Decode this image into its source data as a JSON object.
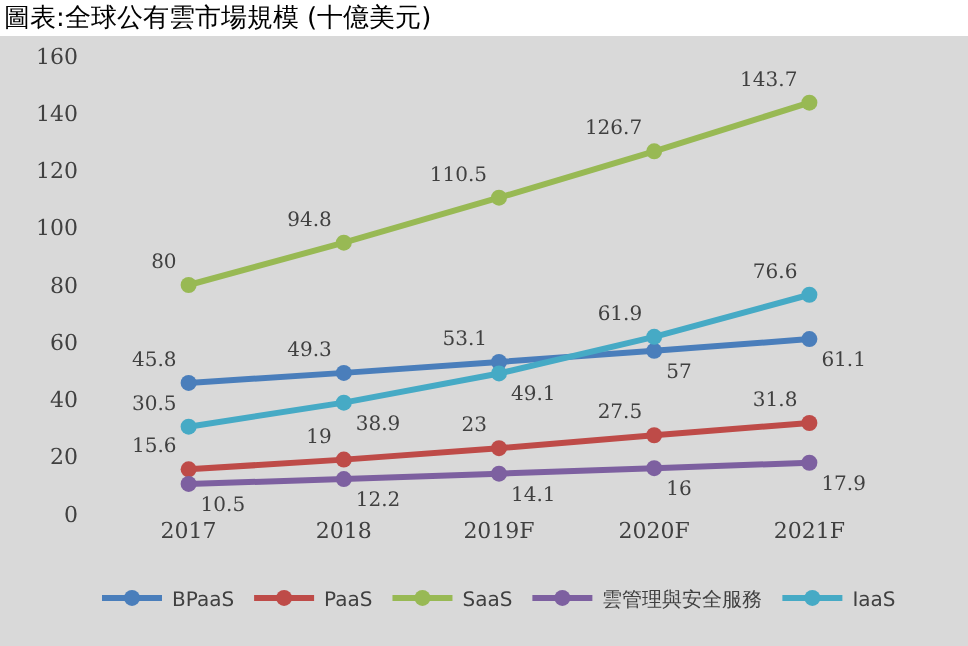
{
  "chart_data": {
    "type": "line",
    "title": "圖表:全球公有雲市場規模 (十億美元)",
    "categories": [
      "2017",
      "2018",
      "2019F",
      "2020F",
      "2021F"
    ],
    "series": [
      {
        "name": "BPaaS",
        "color": "#4a7ebb",
        "values": [
          45.8,
          49.3,
          53.1,
          57,
          61.1
        ]
      },
      {
        "name": "PaaS",
        "color": "#be4b48",
        "values": [
          15.6,
          19,
          23,
          27.5,
          31.8
        ]
      },
      {
        "name": "SaaS",
        "color": "#98b954",
        "values": [
          80,
          94.8,
          110.5,
          126.7,
          143.7
        ]
      },
      {
        "name": "雲管理與安全服務",
        "color": "#7d60a0",
        "values": [
          10.5,
          12.2,
          14.1,
          16,
          17.9
        ]
      },
      {
        "name": "IaaS",
        "color": "#46aac5",
        "values": [
          30.5,
          38.9,
          49.1,
          61.9,
          76.6
        ]
      }
    ],
    "ylim": [
      0,
      160
    ],
    "yticks": [
      0,
      20,
      40,
      60,
      80,
      100,
      120,
      140,
      160
    ],
    "data_labels": true,
    "legend": "bottom",
    "marker": "circle",
    "line_style": "solid",
    "grid": false
  }
}
